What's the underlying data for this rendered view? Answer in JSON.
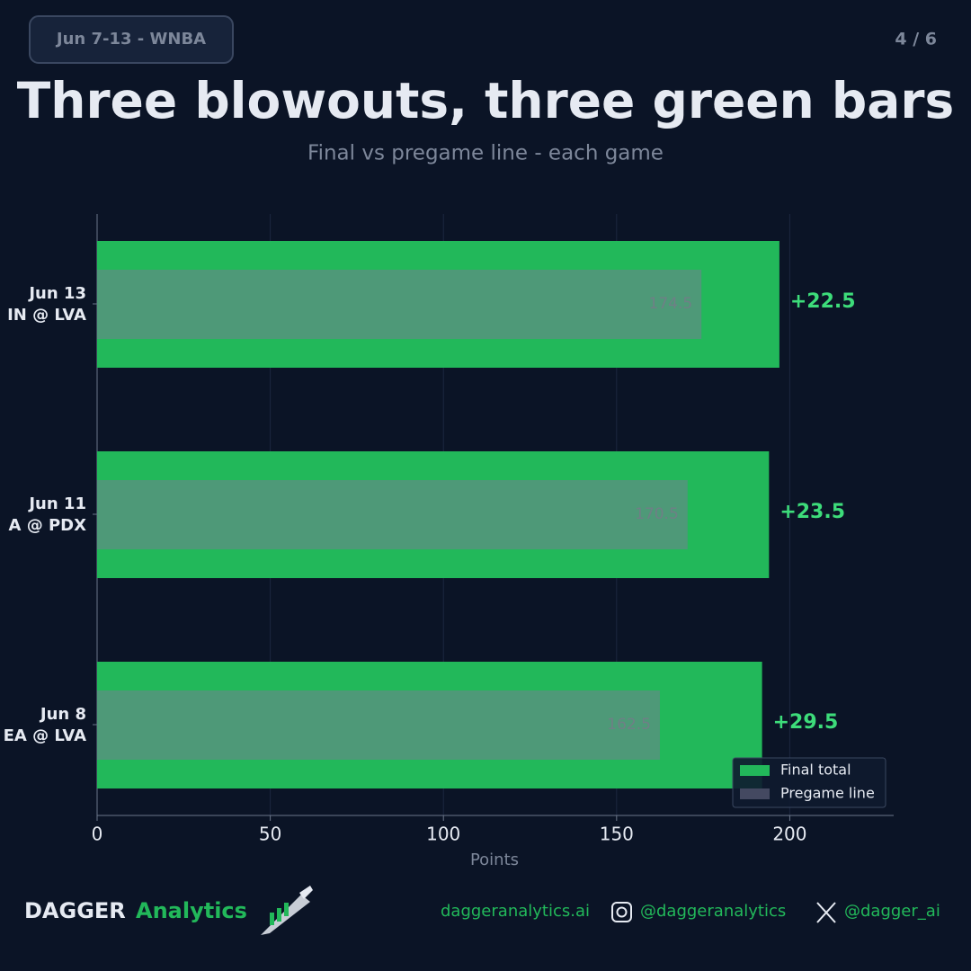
{
  "header": {
    "badge": "Jun 7-13 - WNBA",
    "page": "4 / 6"
  },
  "chart_data": {
    "type": "bar",
    "orientation": "horizontal",
    "title": "Three blowouts, three green bars",
    "subtitle": "Final vs pregame line - each game",
    "categories": [
      "Jun 13",
      "Jun 11",
      "Jun 8"
    ],
    "matchups": [
      "IN @ LVA",
      "A @ PDX",
      "EA @ LVA"
    ],
    "series": [
      {
        "name": "Final total",
        "color": "#22b85a",
        "values": [
          197,
          194,
          192
        ]
      },
      {
        "name": "Pregame line",
        "color": "#7a7a96",
        "values": [
          174.5,
          170.5,
          162.5
        ]
      }
    ],
    "differences": {
      "values": [
        22.5,
        23.5,
        29.5
      ],
      "value_labels": [
        "+22.5",
        "+23.5",
        "+29.5"
      ],
      "color": "#3ddc7a"
    },
    "xlim": [
      0,
      230
    ],
    "xticks": [
      0,
      50,
      100,
      150,
      200
    ],
    "xlabel": "Points",
    "grid": true,
    "legend": "lower right"
  },
  "footer": {
    "brand": "DAGGER",
    "brand_accent": "Analytics",
    "website": "daggeranalytics.ai",
    "instagram": "@daggeranalytics",
    "x": "@dagger_ai"
  }
}
